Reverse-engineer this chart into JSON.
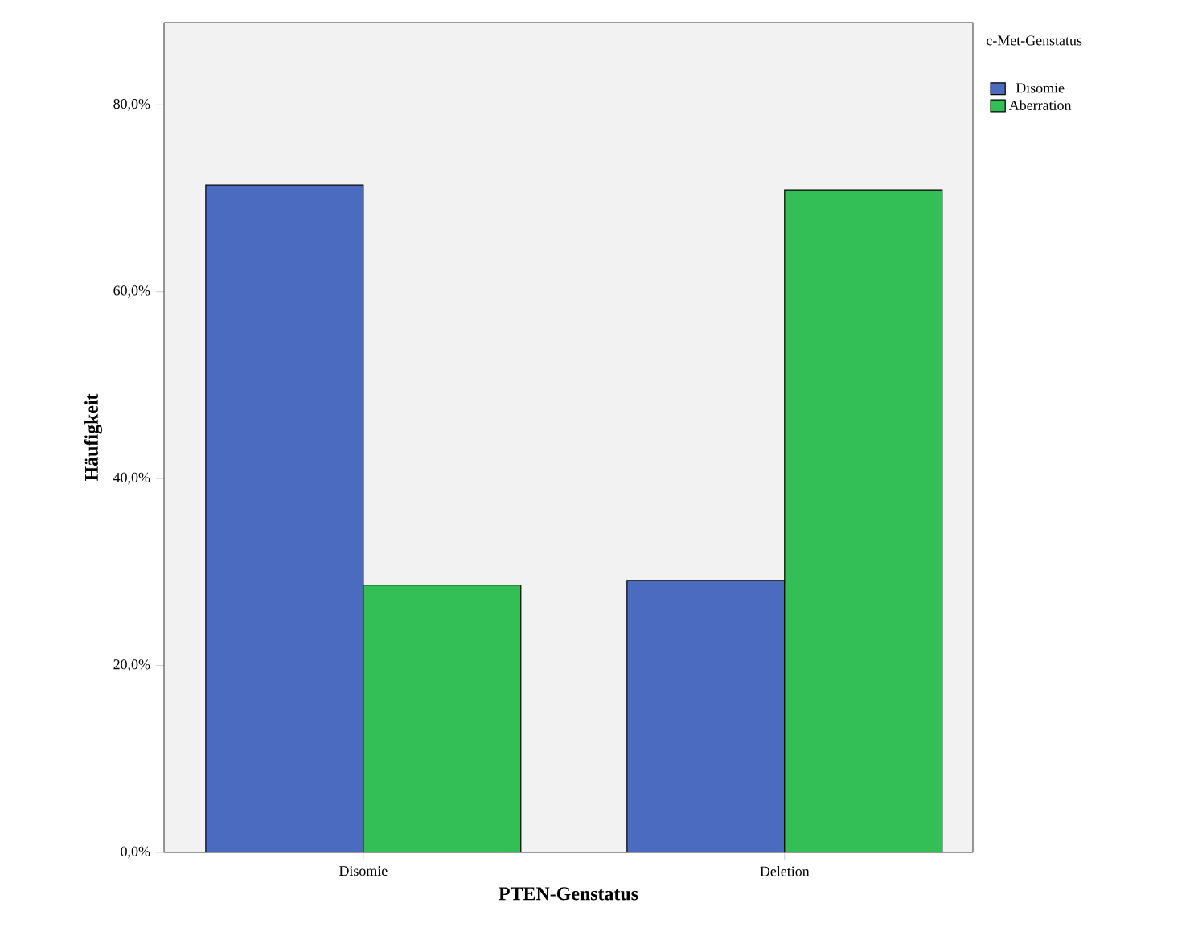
{
  "chart_data": {
    "type": "bar",
    "xlabel": "PTEN-Genstatus",
    "ylabel": "Häufigkeit",
    "legend_title": "c-Met-Genstatus",
    "categories": [
      "Disomie",
      "Deletion"
    ],
    "series": [
      {
        "name": "Disomie",
        "color": "#4a6bbf",
        "values": [
          71.4,
          29.1
        ]
      },
      {
        "name": "Aberration",
        "color": "#33bf55",
        "values": [
          28.6,
          70.9
        ]
      }
    ],
    "ylim": [
      0,
      88.8
    ],
    "yticks": [
      {
        "value": 0,
        "label": "0,0%"
      },
      {
        "value": 20,
        "label": "20,0%"
      },
      {
        "value": 40,
        "label": "40,0%"
      },
      {
        "value": 60,
        "label": "60,0%"
      },
      {
        "value": 80,
        "label": "80,0%"
      }
    ],
    "grid": false,
    "legend": "top right"
  }
}
